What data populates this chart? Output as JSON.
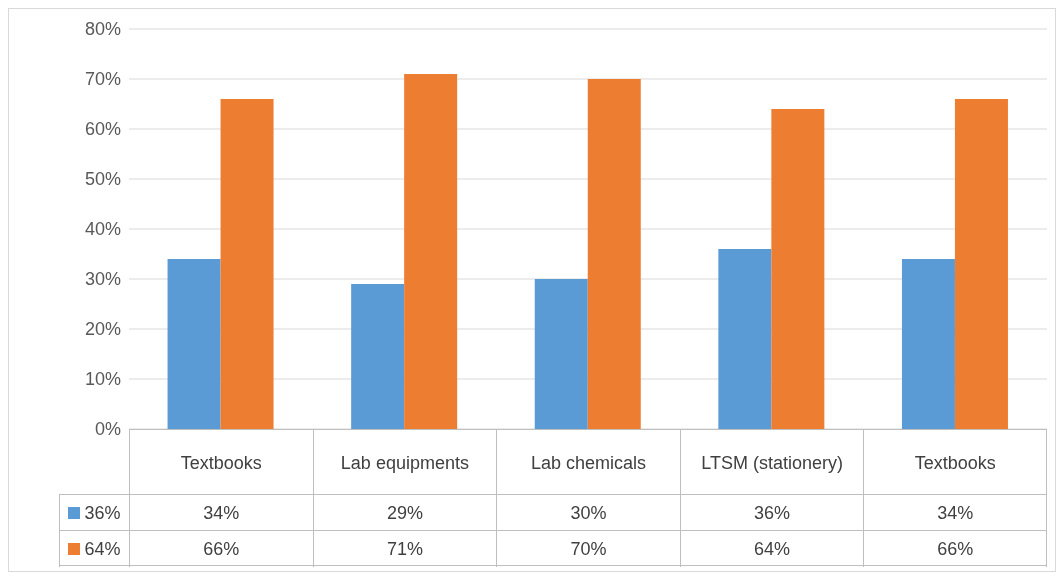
{
  "chart_data": {
    "type": "bar",
    "categories": [
      "Textbooks",
      "Lab equipments",
      "Lab chemicals",
      "LTSM (stationery)",
      "Textbooks"
    ],
    "series": [
      {
        "name": "36%",
        "color": "#5b9bd5",
        "values": [
          34,
          29,
          30,
          36,
          34
        ],
        "value_labels": [
          "34%",
          "29%",
          "30%",
          "36%",
          "34%"
        ]
      },
      {
        "name": "64%",
        "color": "#ed7d31",
        "values": [
          66,
          71,
          70,
          64,
          66
        ],
        "value_labels": [
          "66%",
          "71%",
          "70%",
          "64%",
          "66%"
        ]
      }
    ],
    "ylim": [
      0,
      80
    ],
    "yticks": [
      {
        "value": 0,
        "label": "0%"
      },
      {
        "value": 10,
        "label": "10%"
      },
      {
        "value": 20,
        "label": "20%"
      },
      {
        "value": 30,
        "label": "30%"
      },
      {
        "value": 40,
        "label": "40%"
      },
      {
        "value": 50,
        "label": "50%"
      },
      {
        "value": 60,
        "label": "60%"
      },
      {
        "value": 70,
        "label": "70%"
      },
      {
        "value": 80,
        "label": "80%"
      }
    ],
    "grid": "y",
    "legend": "bottom"
  }
}
